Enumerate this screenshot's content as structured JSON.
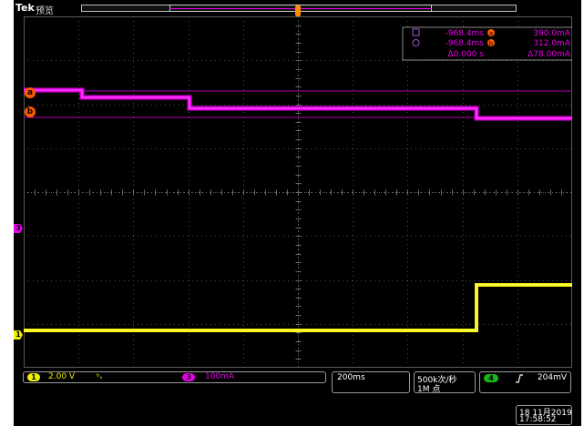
{
  "brand": "Tek",
  "mode": "预览",
  "cursor_readout": {
    "row1_time": "-968.4ms",
    "row1_value": "390.0mA",
    "row2_time": "-968.4ms",
    "row2_value": "312.0mA",
    "delta_time": "Δ0.000 s",
    "delta_value": "Δ78.00mA"
  },
  "markers": {
    "cursor_a": "a",
    "cursor_b": "b",
    "ch3": "3",
    "ch1": "1",
    "trigger": "T"
  },
  "channels": {
    "ch1_number": "1",
    "ch1_scale": "2.00 V",
    "ch1_limit": "ᵇᵥ",
    "ch3_number": "3",
    "ch3_scale": "100mA"
  },
  "horizontal": {
    "timebase": "200ms",
    "sample_rate": "500k次/秒",
    "record_length": "1M 点"
  },
  "trigger": {
    "source": "4",
    "slope_icon": "rising-edge",
    "level": "204mV"
  },
  "datetime": {
    "date": "18 11月2019",
    "time": "17:58:52"
  },
  "colors": {
    "ch1": "#f2f200",
    "ch3": "#e600e6",
    "cursor_badge": "#ff5a00",
    "grid": "#5a5a5a",
    "trigger_marker": "#ff8c00"
  }
}
